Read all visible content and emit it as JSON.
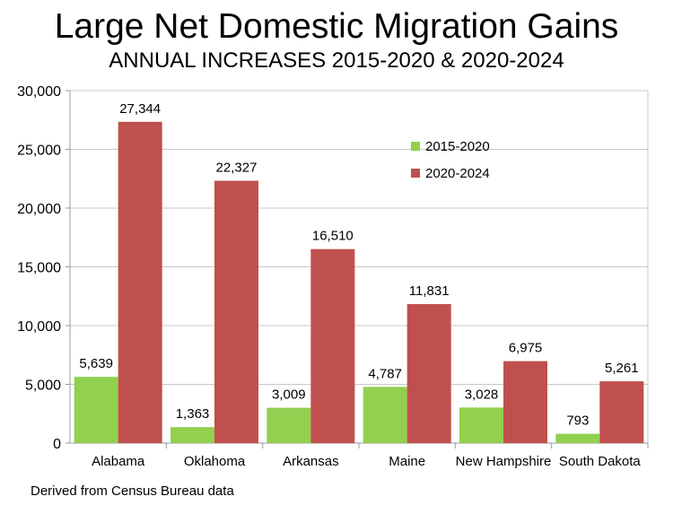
{
  "chart_data": {
    "type": "bar",
    "title": "Large Net Domestic Migration Gains",
    "subtitle": "ANNUAL INCREASES 2015-2020 & 2020-2024",
    "categories": [
      "Alabama",
      "Oklahoma",
      "Arkansas",
      "Maine",
      "New Hampshire",
      "South Dakota"
    ],
    "series": [
      {
        "name": "2015-2020",
        "color": "#92d050",
        "values": [
          5639,
          1363,
          3009,
          4787,
          3028,
          793
        ],
        "labels": [
          "5,639",
          "1,363",
          "3,009",
          "4,787",
          "3,028",
          "793"
        ]
      },
      {
        "name": "2020-2024",
        "color": "#c0504d",
        "values": [
          27344,
          22327,
          16510,
          11831,
          6975,
          5261
        ],
        "labels": [
          "27,344",
          "22,327",
          "16,510",
          "11,831",
          "6,975",
          "5,261"
        ]
      }
    ],
    "xlabel": "",
    "ylabel": "",
    "ylim": [
      0,
      30000
    ],
    "yticks": [
      0,
      5000,
      10000,
      15000,
      20000,
      25000,
      30000
    ],
    "ytick_labels": [
      "0",
      "5,000",
      "10,000",
      "15,000",
      "20,000",
      "25,000",
      "30,000"
    ],
    "grid": true,
    "legend": "top-right, inside plot",
    "footer": "Derived from Census Bureau data"
  }
}
